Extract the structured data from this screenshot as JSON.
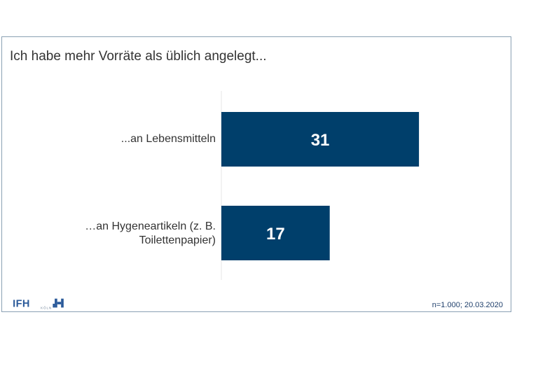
{
  "title": "Ich habe mehr Vorräte als üblich angelegt...",
  "chart_data": {
    "type": "bar",
    "orientation": "horizontal",
    "categories": [
      "...an Lebensmitteln",
      "…an Hygeneartikeln (z. B. Toilettenpapier)"
    ],
    "values": [
      31,
      17
    ],
    "xlim": [
      0,
      50
    ],
    "grid": false,
    "legend": "none",
    "bar_color": "#003f6b",
    "label_color": "#ffffff"
  },
  "footer": "n=1.000; 20.03.2020",
  "logo": {
    "text": "IFH",
    "sub": "KÖLN",
    "color": "#2b5a9a"
  }
}
